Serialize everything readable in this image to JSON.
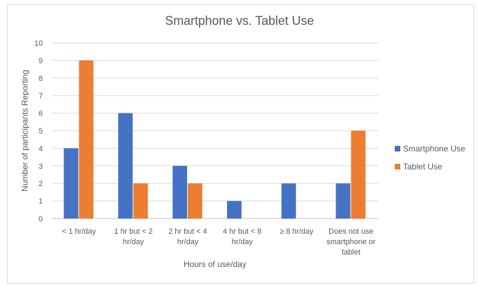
{
  "chart_data": {
    "type": "bar",
    "title": "Smartphone  vs. Tablet Use",
    "xlabel": "Hours of use/day",
    "ylabel": "Number of participants  Reporting",
    "ylim": [
      0,
      10
    ],
    "yticks": [
      0,
      1,
      2,
      3,
      4,
      5,
      6,
      7,
      8,
      9,
      10
    ],
    "grid": true,
    "legend_placement": "right",
    "categories": [
      [
        "< 1 hr/day"
      ],
      [
        "1 hr but < 2",
        "hr/day"
      ],
      [
        "2 hr but < 4",
        "hr/day"
      ],
      [
        "4 hr but <  8",
        "hr/day"
      ],
      [
        "≥ 8 hr/day"
      ],
      [
        "Does not use",
        "smartphone or",
        "tablet"
      ]
    ],
    "series": [
      {
        "name": "Smartphone Use",
        "color": "#4472c4",
        "values": [
          4,
          6,
          3,
          1,
          2,
          2
        ]
      },
      {
        "name": "Tablet Use",
        "color": "#ed7d31",
        "values": [
          9,
          2,
          2,
          null,
          null,
          5
        ]
      }
    ]
  }
}
